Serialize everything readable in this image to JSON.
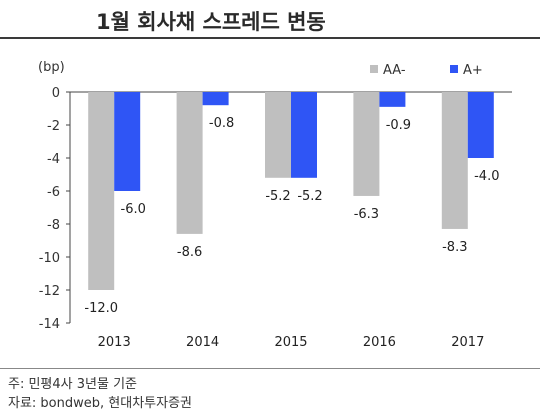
{
  "chart_data": {
    "type": "bar",
    "title": "1월 회사채 스프레드 변동",
    "ylabel": "(bp)",
    "xlabel": "",
    "categories": [
      "2013",
      "2014",
      "2015",
      "2016",
      "2017"
    ],
    "series": [
      {
        "name": "AA-",
        "values": [
          -12.0,
          -8.6,
          -5.2,
          -6.3,
          -8.3
        ],
        "labels": [
          "-12.0",
          "-8.6",
          "-5.2",
          "-6.3",
          "-8.3"
        ],
        "color": "#bfbfbf"
      },
      {
        "name": "A+",
        "values": [
          -6.0,
          -0.8,
          -5.2,
          -0.9,
          -4.0
        ],
        "labels": [
          "-6.0",
          "-0.8",
          "-5.2",
          "-0.9",
          "-4.0"
        ],
        "color": "#2f55f5"
      }
    ],
    "ylim": [
      -14,
      0
    ],
    "yticks": [
      0,
      -2,
      -4,
      -6,
      -8,
      -10,
      -12,
      -14
    ],
    "grid": false,
    "legend_position": "top-right"
  },
  "notes": {
    "line1": "주: 민평4사 3년물 기준",
    "line2": "자료: bondweb, 현대차투자증권"
  }
}
